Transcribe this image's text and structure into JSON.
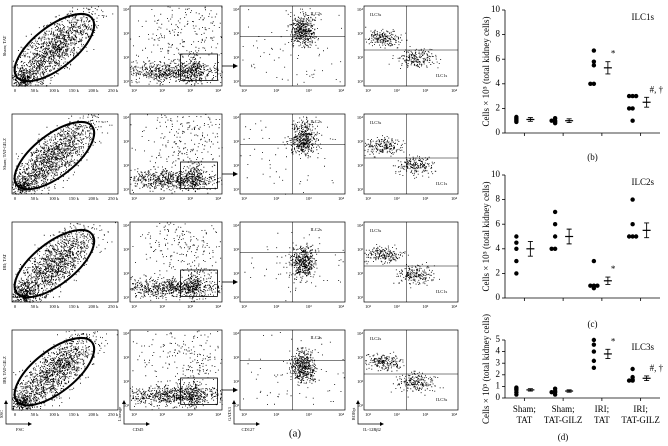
{
  "flow": {
    "row_labels": [
      "Sham; TAT",
      "Sham; TAT-GILZ",
      "IRI; TAT",
      "IRI; TAT-GILZ"
    ],
    "fsc_ticks": [
      "0",
      "50 k",
      "100 k",
      "150 k",
      "200 k",
      "250 k"
    ],
    "log_ticks": [
      "10¹",
      "10²",
      "10³",
      "10⁴"
    ],
    "gates": [
      {
        "col3": "ILC2s",
        "col4_top": "ILC3s",
        "col4_bottom": "ILC1s"
      },
      {
        "col3": "ILC2s",
        "col4_top": "ILC3s",
        "col4_bottom": "ILC1s"
      },
      {
        "col3": "ILC2s",
        "col4_top": "ILC3s",
        "col4_bottom": "ILC1s"
      },
      {
        "col3": "ILC2s",
        "col4_top": "ILC2s",
        "col4_bottom": "ILC3s"
      }
    ],
    "axis_labels": {
      "col1_y": "SSC",
      "col1_x": "FSC",
      "col2_y": "Lineage",
      "col2_x": "CD45",
      "col3_y": "GATA3",
      "col3_x": "CD127",
      "col4_y": "RORγt",
      "col4_x": "IL-12Rβ2"
    },
    "panel_label": "(a)"
  },
  "chart_data": [
    {
      "type": "dot",
      "title": "ILC1s",
      "ylabel": "Cells × 10⁵ (total kidney cells)",
      "panel_label": "(b)",
      "ylim": [
        0,
        10
      ],
      "yticks": [
        0,
        2,
        4,
        6,
        8,
        10
      ],
      "values": [
        [
          1.0,
          1.1,
          1.3,
          0.9,
          1.2
        ],
        [
          1.0,
          0.8,
          1.0,
          1.2,
          0.9
        ],
        [
          6.7,
          5.8,
          5.5,
          4.0,
          4.0
        ],
        [
          3.0,
          2.0,
          1.0,
          2.0,
          3.0,
          3.0
        ]
      ],
      "means": [
        1.1,
        1.0,
        5.3,
        2.5
      ],
      "errors": [
        0.15,
        0.15,
        0.5,
        0.4
      ],
      "annotations": [
        null,
        null,
        "*",
        "#, †"
      ]
    },
    {
      "type": "dot",
      "title": "ILC2s",
      "ylabel": "Cells × 10⁵ (total kidney cells)",
      "panel_label": "(c)",
      "ylim": [
        0,
        10
      ],
      "yticks": [
        0,
        2,
        4,
        6,
        8,
        10
      ],
      "values": [
        [
          5.0,
          4.5,
          4.0,
          3.0,
          2.0
        ],
        [
          7.0,
          6.0,
          5.0,
          4.0,
          4.0
        ],
        [
          3.0,
          1.0,
          1.0,
          0.8,
          1.0
        ],
        [
          8.0,
          6.0,
          5.0,
          5.0,
          5.0
        ]
      ],
      "means": [
        4.0,
        5.0,
        1.4,
        5.5
      ],
      "errors": [
        0.6,
        0.6,
        0.3,
        0.6
      ],
      "annotations": [
        null,
        null,
        "*",
        null
      ]
    },
    {
      "type": "dot",
      "title": "ILC3s",
      "ylabel": "Cells × 10⁵ (total kidney cells)",
      "panel_label": "(d)",
      "categories": [
        "Sham; TAT",
        "Sham; TAT-GILZ",
        "IRI; TAT",
        "IRI; TAT-GILZ"
      ],
      "ylim": [
        0,
        5
      ],
      "yticks": [
        0,
        1,
        2,
        3,
        4,
        5
      ],
      "values": [
        [
          0.9,
          0.8,
          0.7,
          0.5,
          0.3
        ],
        [
          0.8,
          0.6,
          0.5,
          0.5,
          0.3
        ],
        [
          5.0,
          4.6,
          4.0,
          3.2,
          2.6
        ],
        [
          2.5,
          1.8,
          1.6,
          1.5,
          1.5
        ]
      ],
      "means": [
        0.7,
        0.6,
        3.8,
        1.7
      ],
      "errors": [
        0.1,
        0.1,
        0.4,
        0.2
      ],
      "annotations": [
        null,
        null,
        "*",
        "#, †"
      ]
    }
  ]
}
